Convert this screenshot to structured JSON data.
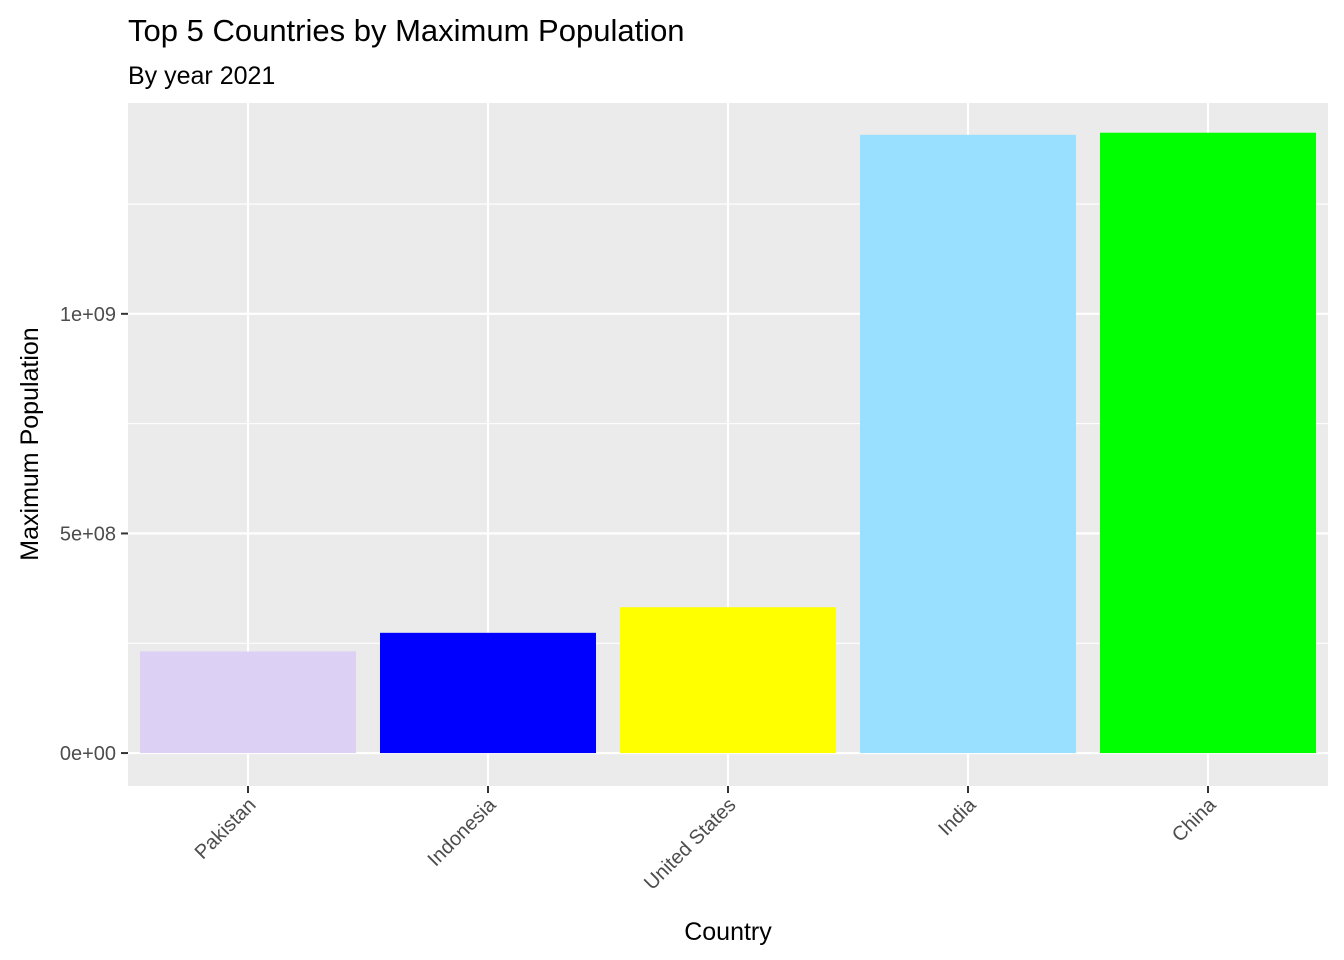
{
  "chart_data": {
    "type": "bar",
    "title": "Top 5 Countries by Maximum Population",
    "subtitle": "By year 2021",
    "xlabel": "Country",
    "ylabel": "Maximum Population",
    "categories": [
      "Pakistan",
      "Indonesia",
      "United States",
      "India",
      "China"
    ],
    "values": [
      231402117,
      273753191,
      332031554,
      1407563842,
      1412360000
    ],
    "colors": [
      "#DDD0F5",
      "#0000FF",
      "#FFFF00",
      "#99DFFF",
      "#00FF00"
    ],
    "ylim": [
      -75000000,
      1480000000
    ],
    "yticks": [
      0,
      500000000,
      1000000000
    ],
    "ytick_labels": [
      "0e+00",
      "5e+08",
      "1e+09"
    ],
    "panel_background": "#EBEBEB",
    "gridline_color": "#FFFFFF",
    "grid": true,
    "legend": "none"
  }
}
